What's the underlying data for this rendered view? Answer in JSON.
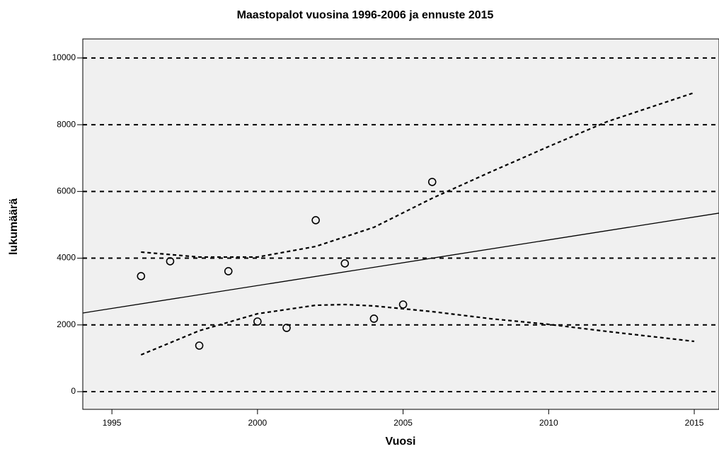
{
  "chart_data": {
    "type": "scatter",
    "title": "Maastopalot vuosina 1996-2006 ja ennuste 2015",
    "x_label": "Vuosi",
    "y_label": "lukumäärä",
    "xlim": [
      1994,
      2015.85
    ],
    "ylim": [
      -530,
      10570
    ],
    "xticks": [
      1995,
      2000,
      2005,
      2010,
      2015
    ],
    "yticks": [
      0,
      2000,
      4000,
      6000,
      8000,
      10000
    ],
    "grid": true,
    "series": [
      {
        "style": "marker",
        "color": "#000000",
        "x": [
          1996,
          1997,
          1998,
          1999,
          2000,
          2001,
          2002,
          2003,
          2004,
          2005,
          2006
        ],
        "values": [
          3461,
          3907,
          1380,
          3609,
          2102,
          1911,
          5138,
          3843,
          2187,
          2611,
          6285
        ]
      },
      {
        "style": "solid",
        "color": "#000000",
        "x": [
          1994,
          2015.85
        ],
        "values": [
          2357,
          5350
        ]
      },
      {
        "style": "dashed",
        "color": "#000000",
        "x": [
          1996,
          1998,
          2000,
          2002,
          2004,
          2006,
          2008,
          2010,
          2012,
          2015
        ],
        "values": [
          4183,
          4034,
          4034,
          4352,
          4926,
          5796,
          6582,
          7346,
          8089,
          8960
        ]
      },
      {
        "style": "dashed",
        "color": "#000000",
        "x": [
          1996,
          1998,
          2000,
          2002,
          2003,
          2004,
          2006,
          2008,
          2010,
          2012,
          2015
        ],
        "values": [
          1104,
          1826,
          2335,
          2590,
          2611,
          2569,
          2399,
          2187,
          2017,
          1805,
          1507
        ]
      }
    ]
  }
}
